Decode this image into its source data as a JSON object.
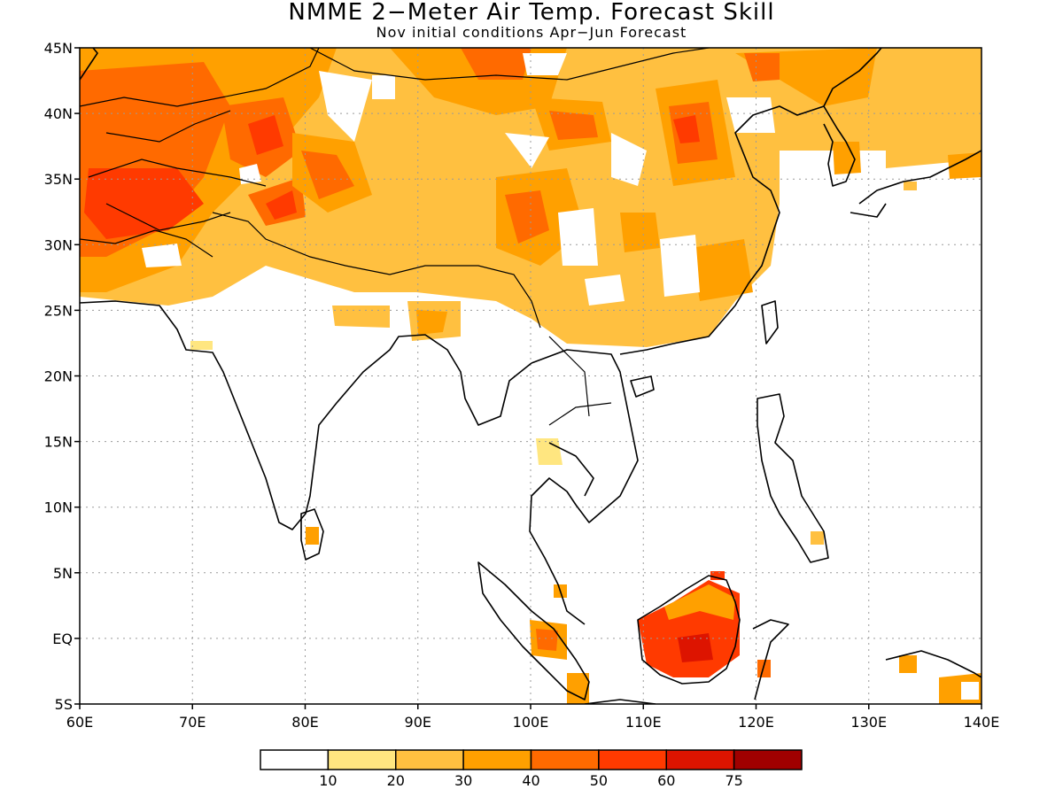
{
  "title": "NMME 2−Meter Air Temp. Forecast Skill",
  "subtitle": "Nov initial conditions   Apr−Jun Forecast",
  "map": {
    "lon_range": [
      60,
      140
    ],
    "lat_range": [
      -5,
      45
    ],
    "x_ticks": [
      "60E",
      "70E",
      "80E",
      "90E",
      "100E",
      "110E",
      "120E",
      "130E",
      "140E"
    ],
    "y_ticks": [
      "5S",
      "EQ",
      "5N",
      "10N",
      "15N",
      "20N",
      "25N",
      "30N",
      "35N",
      "40N",
      "45N"
    ],
    "grid": "dotted"
  },
  "colorbar": {
    "colors": [
      "#ffffff",
      "#ffe680",
      "#ffc040",
      "#ffa000",
      "#ff6a00",
      "#ff3a00",
      "#dd1400",
      "#a00000"
    ],
    "labels": [
      "10",
      "20",
      "30",
      "40",
      "50",
      "60",
      "75"
    ]
  }
}
